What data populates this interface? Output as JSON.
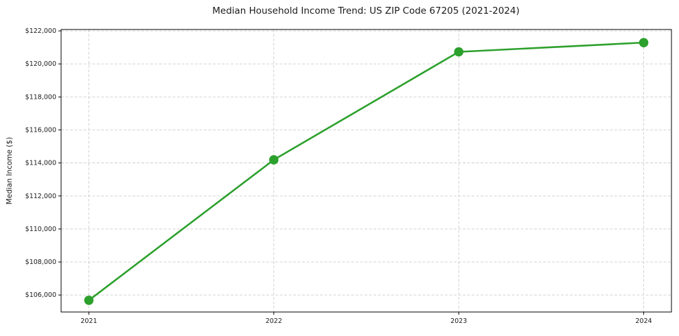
{
  "chart_data": {
    "type": "line",
    "title": "Median Household Income Trend: US ZIP Code 67205 (2021-2024)",
    "xlabel": "",
    "ylabel": "Median Income ($)",
    "x": [
      2021,
      2022,
      2023,
      2024
    ],
    "x_tick_labels": [
      "2021",
      "2022",
      "2023",
      "2024"
    ],
    "y_ticks": [
      106000,
      108000,
      110000,
      112000,
      114000,
      116000,
      118000,
      120000,
      122000
    ],
    "y_tick_labels": [
      "$106,000",
      "$108,000",
      "$110,000",
      "$112,000",
      "$114,000",
      "$116,000",
      "$118,000",
      "$120,000",
      "$122,000"
    ],
    "series": [
      {
        "name": "Median Household Income",
        "values": [
          105680,
          114190,
          120730,
          121290
        ],
        "color": "#2ca02c",
        "marker": "circle"
      }
    ],
    "xlim": [
      2020.85,
      2024.15
    ],
    "ylim": [
      104970,
      122085
    ],
    "grid": true,
    "grid_style": "dashed",
    "grid_color": "#cdcdcd",
    "spine_color": "#000000",
    "tick_color": "#1a1a1a",
    "background": "#ffffff",
    "legend": "none"
  }
}
